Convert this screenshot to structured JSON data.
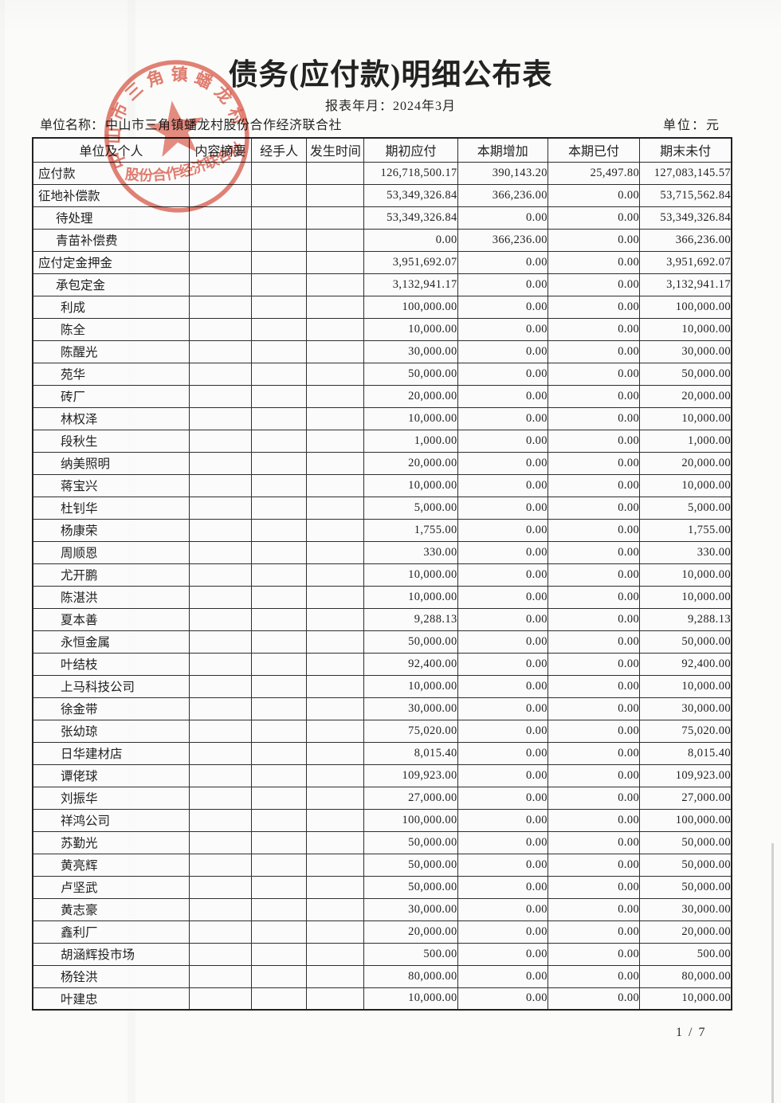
{
  "page": {
    "title": "债务(应付款)明细公布表",
    "report_period": "报表年月：2024年3月",
    "unit_name_label": "单位名称：",
    "unit_name": "中山市三角镇蟠龙村股份合作经济联合社",
    "currency_label": "单位：元",
    "page_number": "1 / 7"
  },
  "stamp": {
    "top_text": "中山市三角镇蟠龙村",
    "bottom_text": "股份合作经济联合社",
    "color": "#d84a38"
  },
  "table": {
    "headers": [
      "单位及个人",
      "内容摘要",
      "经手人",
      "发生时间",
      "期初应付",
      "本期增加",
      "本期已付",
      "期末未付"
    ],
    "rows": [
      {
        "name": "应付款",
        "indent": 0,
        "summary": "",
        "handler": "",
        "date": "",
        "opening": "126,718,500.17",
        "increase": "390,143.20",
        "paid": "25,497.80",
        "closing": "127,083,145.57"
      },
      {
        "name": "征地补偿款",
        "indent": 0,
        "summary": "",
        "handler": "",
        "date": "",
        "opening": "53,349,326.84",
        "increase": "366,236.00",
        "paid": "0.00",
        "closing": "53,715,562.84"
      },
      {
        "name": "待处理",
        "indent": 1,
        "summary": "",
        "handler": "",
        "date": "",
        "opening": "53,349,326.84",
        "increase": "0.00",
        "paid": "0.00",
        "closing": "53,349,326.84"
      },
      {
        "name": "青苗补偿费",
        "indent": 1,
        "summary": "",
        "handler": "",
        "date": "",
        "opening": "0.00",
        "increase": "366,236.00",
        "paid": "0.00",
        "closing": "366,236.00"
      },
      {
        "name": "应付定金押金",
        "indent": 0,
        "summary": "",
        "handler": "",
        "date": "",
        "opening": "3,951,692.07",
        "increase": "0.00",
        "paid": "0.00",
        "closing": "3,951,692.07"
      },
      {
        "name": "承包定金",
        "indent": 1,
        "summary": "",
        "handler": "",
        "date": "",
        "opening": "3,132,941.17",
        "increase": "0.00",
        "paid": "0.00",
        "closing": "3,132,941.17"
      },
      {
        "name": "利成",
        "indent": 2,
        "summary": "",
        "handler": "",
        "date": "",
        "opening": "100,000.00",
        "increase": "0.00",
        "paid": "0.00",
        "closing": "100,000.00"
      },
      {
        "name": "陈全",
        "indent": 2,
        "summary": "",
        "handler": "",
        "date": "",
        "opening": "10,000.00",
        "increase": "0.00",
        "paid": "0.00",
        "closing": "10,000.00"
      },
      {
        "name": "陈醒光",
        "indent": 2,
        "summary": "",
        "handler": "",
        "date": "",
        "opening": "30,000.00",
        "increase": "0.00",
        "paid": "0.00",
        "closing": "30,000.00"
      },
      {
        "name": "苑华",
        "indent": 2,
        "summary": "",
        "handler": "",
        "date": "",
        "opening": "50,000.00",
        "increase": "0.00",
        "paid": "0.00",
        "closing": "50,000.00"
      },
      {
        "name": "砖厂",
        "indent": 2,
        "summary": "",
        "handler": "",
        "date": "",
        "opening": "20,000.00",
        "increase": "0.00",
        "paid": "0.00",
        "closing": "20,000.00"
      },
      {
        "name": "林权泽",
        "indent": 2,
        "summary": "",
        "handler": "",
        "date": "",
        "opening": "10,000.00",
        "increase": "0.00",
        "paid": "0.00",
        "closing": "10,000.00"
      },
      {
        "name": "段秋生",
        "indent": 2,
        "summary": "",
        "handler": "",
        "date": "",
        "opening": "1,000.00",
        "increase": "0.00",
        "paid": "0.00",
        "closing": "1,000.00"
      },
      {
        "name": "纳美照明",
        "indent": 2,
        "summary": "",
        "handler": "",
        "date": "",
        "opening": "20,000.00",
        "increase": "0.00",
        "paid": "0.00",
        "closing": "20,000.00"
      },
      {
        "name": "蒋宝兴",
        "indent": 2,
        "summary": "",
        "handler": "",
        "date": "",
        "opening": "10,000.00",
        "increase": "0.00",
        "paid": "0.00",
        "closing": "10,000.00"
      },
      {
        "name": "杜钊华",
        "indent": 2,
        "summary": "",
        "handler": "",
        "date": "",
        "opening": "5,000.00",
        "increase": "0.00",
        "paid": "0.00",
        "closing": "5,000.00"
      },
      {
        "name": "杨康荣",
        "indent": 2,
        "summary": "",
        "handler": "",
        "date": "",
        "opening": "1,755.00",
        "increase": "0.00",
        "paid": "0.00",
        "closing": "1,755.00"
      },
      {
        "name": "周顺恩",
        "indent": 2,
        "summary": "",
        "handler": "",
        "date": "",
        "opening": "330.00",
        "increase": "0.00",
        "paid": "0.00",
        "closing": "330.00"
      },
      {
        "name": "尤开鹏",
        "indent": 2,
        "summary": "",
        "handler": "",
        "date": "",
        "opening": "10,000.00",
        "increase": "0.00",
        "paid": "0.00",
        "closing": "10,000.00"
      },
      {
        "name": "陈湛洪",
        "indent": 2,
        "summary": "",
        "handler": "",
        "date": "",
        "opening": "10,000.00",
        "increase": "0.00",
        "paid": "0.00",
        "closing": "10,000.00"
      },
      {
        "name": "夏本善",
        "indent": 2,
        "summary": "",
        "handler": "",
        "date": "",
        "opening": "9,288.13",
        "increase": "0.00",
        "paid": "0.00",
        "closing": "9,288.13"
      },
      {
        "name": "永恒金属",
        "indent": 2,
        "summary": "",
        "handler": "",
        "date": "",
        "opening": "50,000.00",
        "increase": "0.00",
        "paid": "0.00",
        "closing": "50,000.00"
      },
      {
        "name": "叶结枝",
        "indent": 2,
        "summary": "",
        "handler": "",
        "date": "",
        "opening": "92,400.00",
        "increase": "0.00",
        "paid": "0.00",
        "closing": "92,400.00"
      },
      {
        "name": "上马科技公司",
        "indent": 2,
        "summary": "",
        "handler": "",
        "date": "",
        "opening": "10,000.00",
        "increase": "0.00",
        "paid": "0.00",
        "closing": "10,000.00"
      },
      {
        "name": "徐金带",
        "indent": 2,
        "summary": "",
        "handler": "",
        "date": "",
        "opening": "30,000.00",
        "increase": "0.00",
        "paid": "0.00",
        "closing": "30,000.00"
      },
      {
        "name": "张幼琼",
        "indent": 2,
        "summary": "",
        "handler": "",
        "date": "",
        "opening": "75,020.00",
        "increase": "0.00",
        "paid": "0.00",
        "closing": "75,020.00"
      },
      {
        "name": "日华建材店",
        "indent": 2,
        "summary": "",
        "handler": "",
        "date": "",
        "opening": "8,015.40",
        "increase": "0.00",
        "paid": "0.00",
        "closing": "8,015.40"
      },
      {
        "name": "谭佬球",
        "indent": 2,
        "summary": "",
        "handler": "",
        "date": "",
        "opening": "109,923.00",
        "increase": "0.00",
        "paid": "0.00",
        "closing": "109,923.00"
      },
      {
        "name": "刘振华",
        "indent": 2,
        "summary": "",
        "handler": "",
        "date": "",
        "opening": "27,000.00",
        "increase": "0.00",
        "paid": "0.00",
        "closing": "27,000.00"
      },
      {
        "name": "祥鸿公司",
        "indent": 2,
        "summary": "",
        "handler": "",
        "date": "",
        "opening": "100,000.00",
        "increase": "0.00",
        "paid": "0.00",
        "closing": "100,000.00"
      },
      {
        "name": "苏勤光",
        "indent": 2,
        "summary": "",
        "handler": "",
        "date": "",
        "opening": "50,000.00",
        "increase": "0.00",
        "paid": "0.00",
        "closing": "50,000.00"
      },
      {
        "name": "黄亮辉",
        "indent": 2,
        "summary": "",
        "handler": "",
        "date": "",
        "opening": "50,000.00",
        "increase": "0.00",
        "paid": "0.00",
        "closing": "50,000.00"
      },
      {
        "name": "卢坚武",
        "indent": 2,
        "summary": "",
        "handler": "",
        "date": "",
        "opening": "50,000.00",
        "increase": "0.00",
        "paid": "0.00",
        "closing": "50,000.00"
      },
      {
        "name": "黄志豪",
        "indent": 2,
        "summary": "",
        "handler": "",
        "date": "",
        "opening": "30,000.00",
        "increase": "0.00",
        "paid": "0.00",
        "closing": "30,000.00"
      },
      {
        "name": "鑫利厂",
        "indent": 2,
        "summary": "",
        "handler": "",
        "date": "",
        "opening": "20,000.00",
        "increase": "0.00",
        "paid": "0.00",
        "closing": "20,000.00"
      },
      {
        "name": "胡涵辉投市场",
        "indent": 2,
        "summary": "",
        "handler": "",
        "date": "",
        "opening": "500.00",
        "increase": "0.00",
        "paid": "0.00",
        "closing": "500.00"
      },
      {
        "name": "杨铨洪",
        "indent": 2,
        "summary": "",
        "handler": "",
        "date": "",
        "opening": "80,000.00",
        "increase": "0.00",
        "paid": "0.00",
        "closing": "80,000.00"
      },
      {
        "name": "叶建忠",
        "indent": 2,
        "summary": "",
        "handler": "",
        "date": "",
        "opening": "10,000.00",
        "increase": "0.00",
        "paid": "0.00",
        "closing": "10,000.00"
      }
    ]
  }
}
